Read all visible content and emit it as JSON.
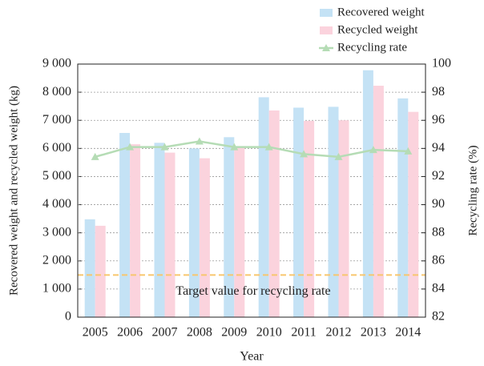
{
  "chart_data": {
    "type": "bar",
    "categories": [
      "2005",
      "2006",
      "2007",
      "2008",
      "2009",
      "2010",
      "2011",
      "2012",
      "2013",
      "2014"
    ],
    "series": [
      {
        "name": "Recovered weight",
        "color": "#c4e2f5",
        "values": [
          3480,
          6550,
          6200,
          6000,
          6400,
          7820,
          7450,
          7480,
          8780,
          7780
        ]
      },
      {
        "name": "Recycled weight",
        "color": "#fbd3dd",
        "values": [
          3250,
          6150,
          5850,
          5650,
          6050,
          7350,
          6980,
          7000,
          8230,
          7300
        ]
      },
      {
        "name": "Recycling rate",
        "color": "#b5dcb5",
        "type": "line",
        "axis": "y2",
        "values": [
          93.4,
          94.1,
          94.1,
          94.5,
          94.1,
          94.1,
          93.6,
          93.4,
          93.9,
          93.8
        ]
      }
    ],
    "target": {
      "value": 85,
      "label": "Target value for recycling rate",
      "color": "#f8c66e"
    },
    "xlabel": "Year",
    "ylabel": "Recovered weight and recycled weight (kg)",
    "y2label": "Recycling rate (%)",
    "ylim": [
      0,
      9000
    ],
    "yticks": [
      0,
      {
        "value": 1000,
        "label": "1 000"
      },
      {
        "value": 2000,
        "label": "2 000"
      },
      {
        "value": 3000,
        "label": "3 000"
      },
      {
        "value": 4000,
        "label": "4 000"
      },
      {
        "value": 5000,
        "label": "5 000"
      },
      {
        "value": 6000,
        "label": "6 000"
      },
      {
        "value": 7000,
        "label": "7 000"
      },
      {
        "value": 8000,
        "label": "8 000"
      },
      {
        "value": 9000,
        "label": "9 000"
      }
    ],
    "y2lim": [
      82,
      100
    ],
    "y2ticks": [
      82,
      84,
      86,
      88,
      90,
      92,
      94,
      96,
      98,
      100
    ],
    "grid": true,
    "legend": "top-right"
  }
}
